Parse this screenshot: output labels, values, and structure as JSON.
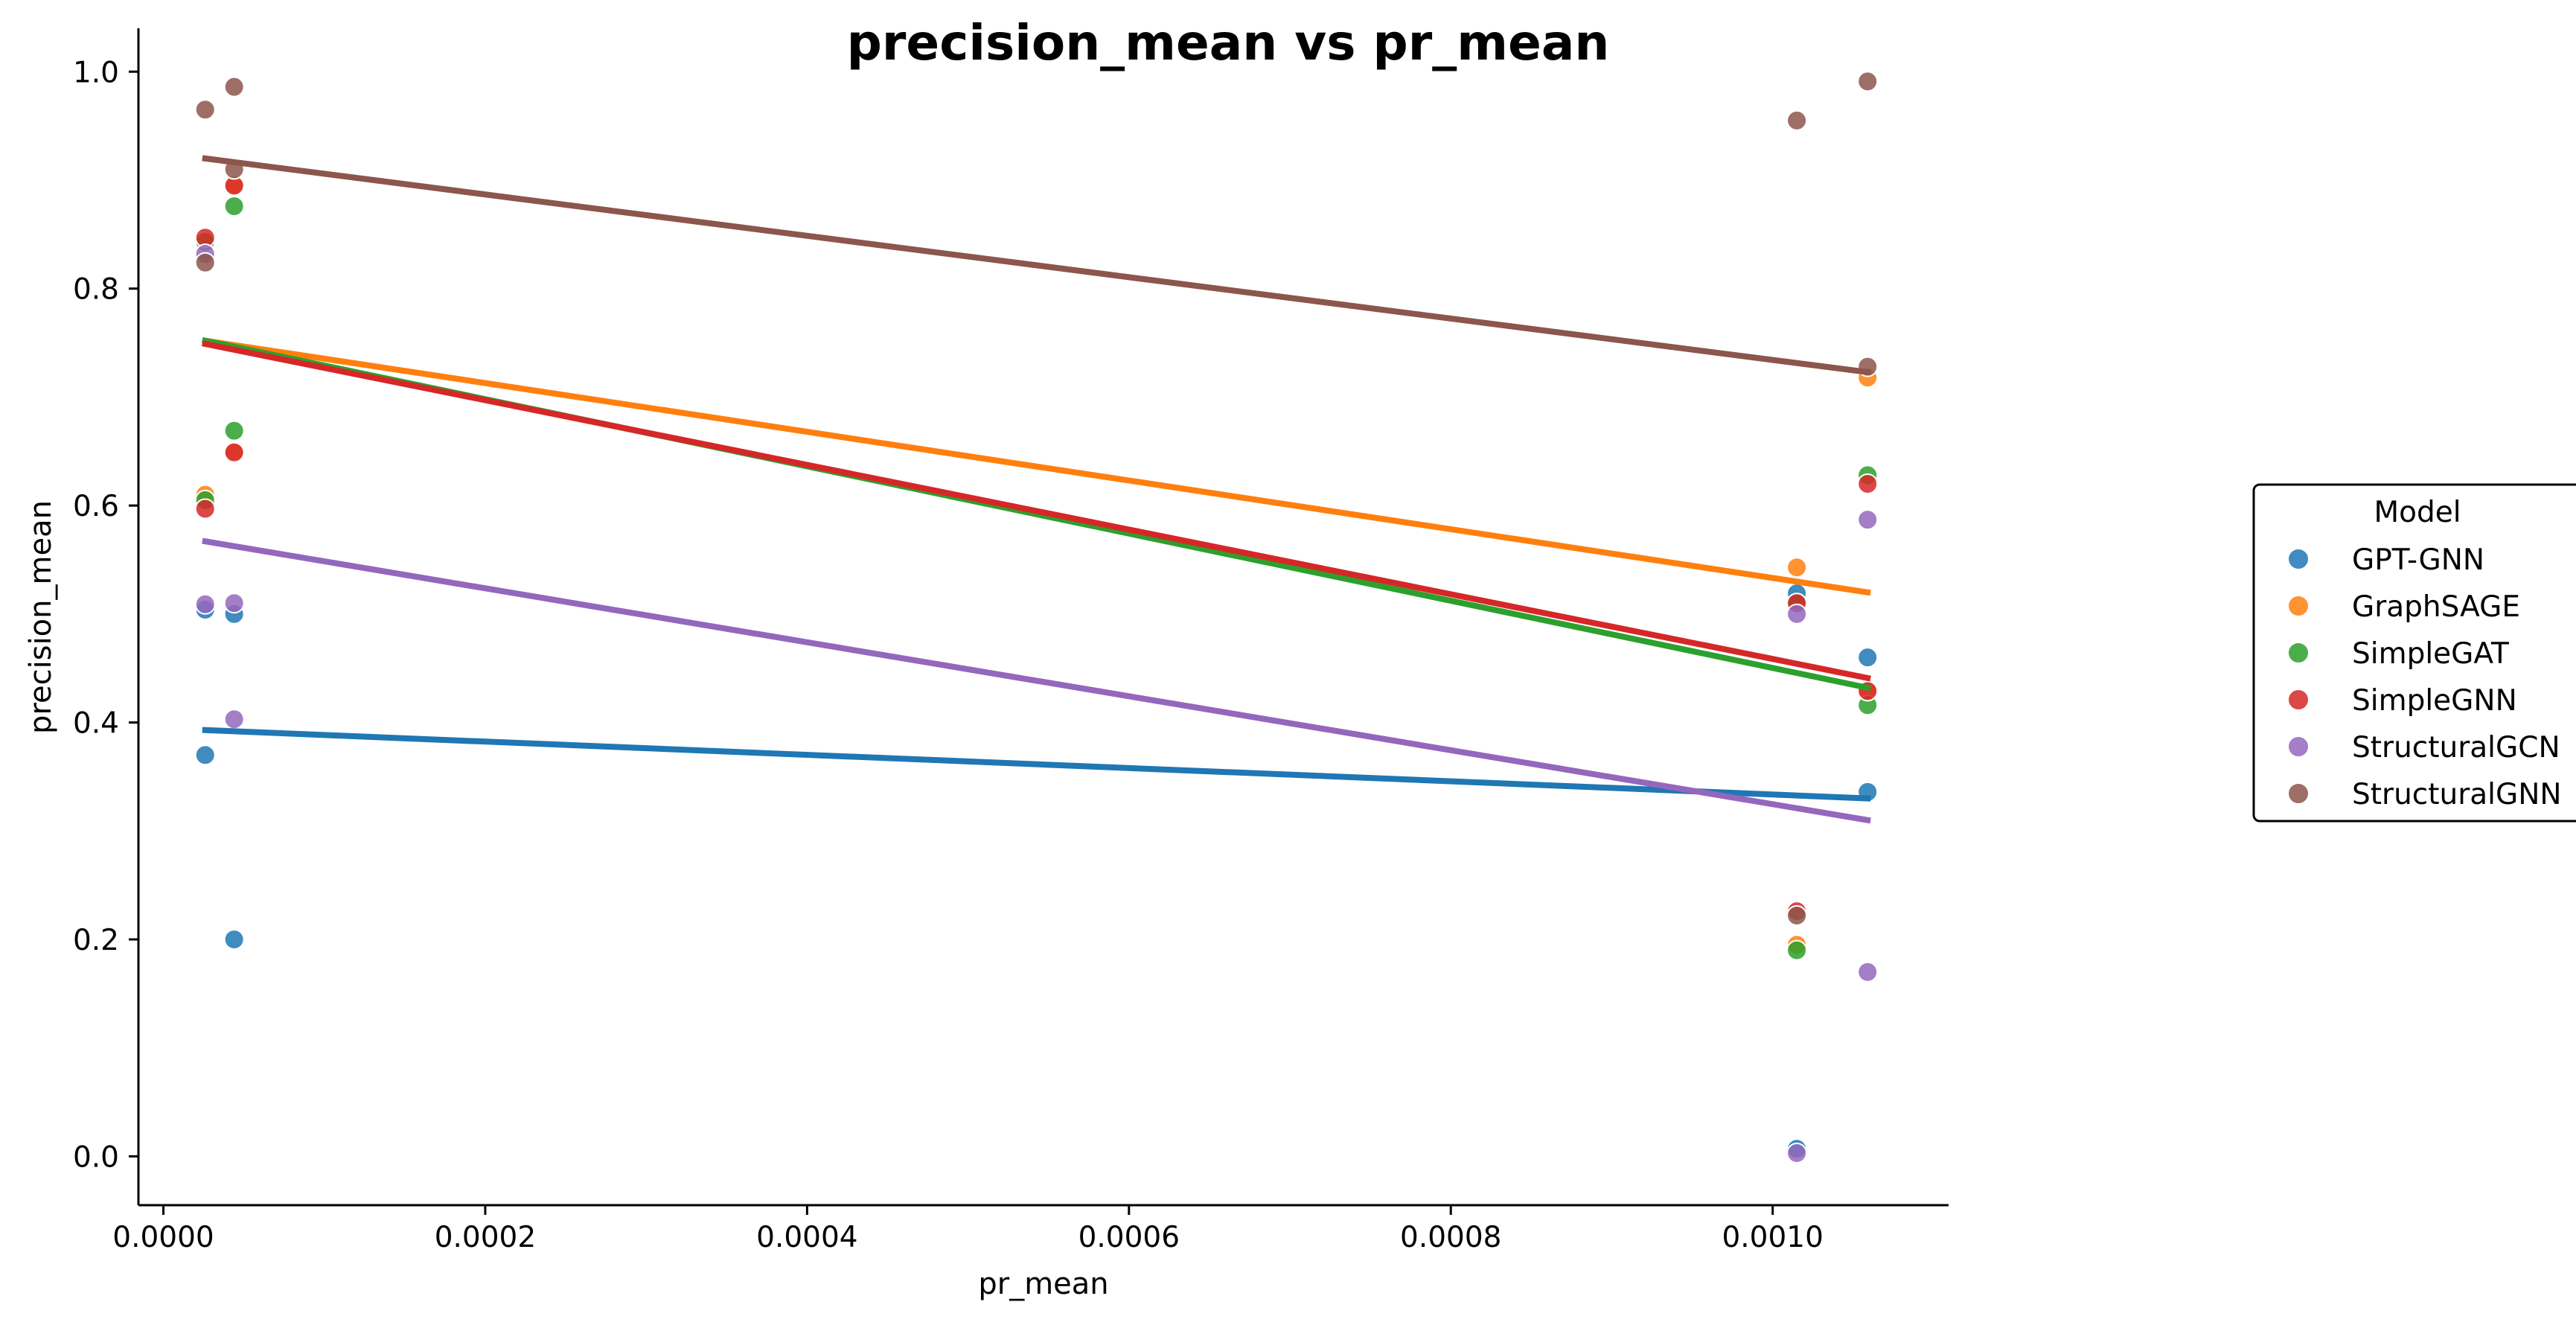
{
  "chart_data": {
    "type": "scatter",
    "title": "precision_mean vs pr_mean",
    "xlabel": "pr_mean",
    "ylabel": "precision_mean",
    "xlim": [
      -1.55e-05,
      0.0011093
    ],
    "ylim": [
      -0.045,
      1.04
    ],
    "xticks": [
      0.0,
      0.0002,
      0.0004,
      0.0006,
      0.0008,
      0.001
    ],
    "xtick_labels": [
      "0.0000",
      "0.0002",
      "0.0004",
      "0.0006",
      "0.0008",
      "0.0010"
    ],
    "yticks": [
      0.0,
      0.2,
      0.4,
      0.6,
      0.8,
      1.0
    ],
    "ytick_labels": [
      "0.0",
      "0.2",
      "0.4",
      "0.6",
      "0.8",
      "1.0"
    ],
    "grid": false,
    "legend": {
      "title": "Model",
      "placement": "right"
    },
    "series": [
      {
        "name": "GPT-GNN",
        "color": "#1f77b4",
        "points": [
          [
            2.6e-05,
            0.504
          ],
          [
            2.6e-05,
            0.37
          ],
          [
            4.4e-05,
            0.5
          ],
          [
            4.4e-05,
            0.2
          ],
          [
            0.001015,
            0.519
          ],
          [
            0.001015,
            0.007
          ],
          [
            0.001059,
            0.46
          ],
          [
            0.001059,
            0.336
          ]
        ],
        "trend": [
          [
            2.6e-05,
            0.393
          ],
          [
            0.001059,
            0.33
          ]
        ]
      },
      {
        "name": "GraphSAGE",
        "color": "#ff7f0e",
        "points": [
          [
            2.6e-05,
            0.61
          ],
          [
            4.4e-05,
            0.65
          ],
          [
            4.4e-05,
            0.895
          ],
          [
            0.001015,
            0.543
          ],
          [
            0.001015,
            0.195
          ],
          [
            0.001059,
            0.718
          ],
          [
            0.001059,
            0.43
          ]
        ],
        "trend": [
          [
            2.6e-05,
            0.752
          ],
          [
            0.001059,
            0.52
          ]
        ]
      },
      {
        "name": "SimpleGAT",
        "color": "#2ca02c",
        "points": [
          [
            2.6e-05,
            0.605
          ],
          [
            2.6e-05,
            0.843
          ],
          [
            4.4e-05,
            0.876
          ],
          [
            4.4e-05,
            0.669
          ],
          [
            0.001015,
            0.19
          ],
          [
            0.001015,
            0.51
          ],
          [
            0.001059,
            0.628
          ],
          [
            0.001059,
            0.416
          ]
        ],
        "trend": [
          [
            2.6e-05,
            0.752
          ],
          [
            0.001059,
            0.432
          ]
        ]
      },
      {
        "name": "SimpleGNN",
        "color": "#d62728",
        "points": [
          [
            2.6e-05,
            0.597
          ],
          [
            2.6e-05,
            0.847
          ],
          [
            4.4e-05,
            0.895
          ],
          [
            4.4e-05,
            0.649
          ],
          [
            0.001015,
            0.226
          ],
          [
            0.001015,
            0.51
          ],
          [
            0.001059,
            0.62
          ],
          [
            0.001059,
            0.429
          ]
        ],
        "trend": [
          [
            2.6e-05,
            0.749
          ],
          [
            0.001059,
            0.441
          ]
        ]
      },
      {
        "name": "StructuralGCN",
        "color": "#9467bd",
        "points": [
          [
            2.6e-05,
            0.509
          ],
          [
            2.6e-05,
            0.832
          ],
          [
            4.4e-05,
            0.51
          ],
          [
            4.4e-05,
            0.403
          ],
          [
            0.001015,
            0.5
          ],
          [
            0.001015,
            0.003
          ],
          [
            0.001059,
            0.587
          ],
          [
            0.001059,
            0.17
          ]
        ],
        "trend": [
          [
            2.6e-05,
            0.567
          ],
          [
            0.001059,
            0.31
          ]
        ]
      },
      {
        "name": "StructuralGNN",
        "color": "#8c564b",
        "points": [
          [
            2.6e-05,
            0.965
          ],
          [
            2.6e-05,
            0.824
          ],
          [
            4.4e-05,
            0.986
          ],
          [
            4.4e-05,
            0.91
          ],
          [
            0.001015,
            0.955
          ],
          [
            0.001015,
            0.222
          ],
          [
            0.001059,
            0.991
          ],
          [
            0.001059,
            0.728
          ]
        ],
        "trend": [
          [
            2.6e-05,
            0.92
          ],
          [
            0.001059,
            0.723
          ]
        ]
      }
    ]
  }
}
